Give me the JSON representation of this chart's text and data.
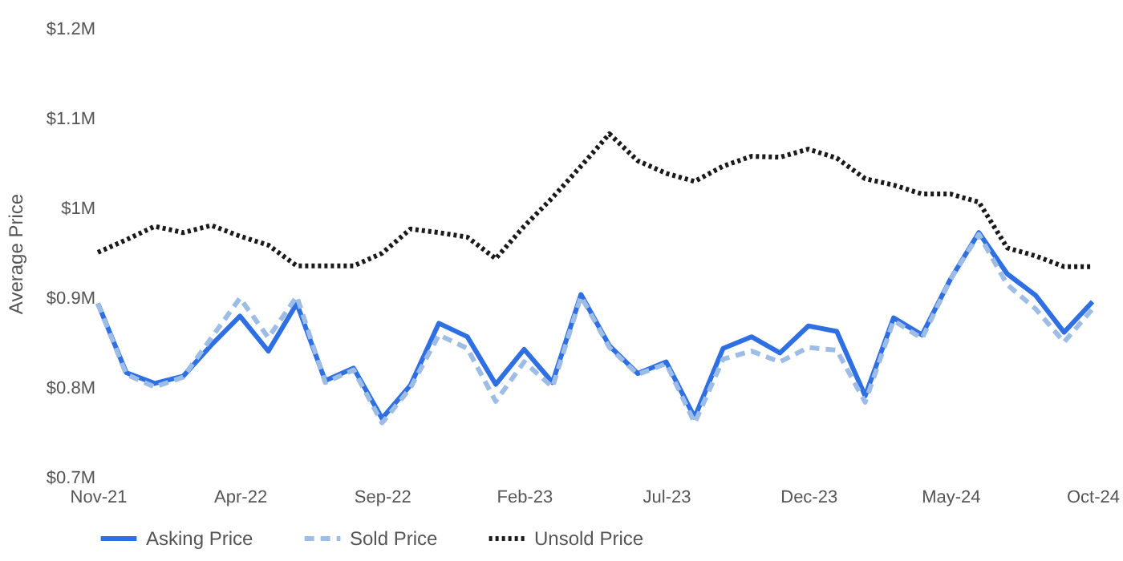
{
  "chart_data": {
    "type": "line",
    "ylabel": "Average Price",
    "categories": [
      "Nov-21",
      null,
      null,
      null,
      null,
      "Apr-22",
      null,
      null,
      null,
      null,
      "Sep-22",
      null,
      null,
      null,
      null,
      "Feb-23",
      null,
      null,
      null,
      null,
      "Jul-23",
      null,
      null,
      null,
      null,
      "Dec-23",
      null,
      null,
      null,
      null,
      "May-24",
      null,
      null,
      null,
      null,
      "Oct-24"
    ],
    "ylim": [
      0.7,
      1.2
    ],
    "yticks": [
      {
        "value": 0.7,
        "label": "$0.7M"
      },
      {
        "value": 0.8,
        "label": "$0.8M"
      },
      {
        "value": 0.9,
        "label": "$0.9M"
      },
      {
        "value": 1.0,
        "label": "$1M"
      },
      {
        "value": 1.1,
        "label": "$1.1M"
      },
      {
        "value": 1.2,
        "label": "$1.2M"
      }
    ],
    "grid": false,
    "legend": "bottom",
    "series": [
      {
        "name": "Asking Price",
        "color": "#2f6fe4",
        "line_style": "solid",
        "values": [
          0.894,
          0.817,
          0.805,
          0.813,
          0.848,
          0.88,
          0.841,
          0.894,
          0.808,
          0.822,
          0.766,
          0.803,
          0.872,
          0.857,
          0.804,
          0.843,
          0.806,
          0.904,
          0.847,
          0.816,
          0.829,
          0.767,
          0.844,
          0.857,
          0.839,
          0.869,
          0.863,
          0.791,
          0.878,
          0.859,
          0.921,
          0.973,
          0.927,
          0.903,
          0.862,
          0.896
        ]
      },
      {
        "name": "Sold Price",
        "color": "#9dbde6",
        "line_style": "dashed",
        "values": [
          0.894,
          0.815,
          0.801,
          0.812,
          0.856,
          0.9,
          0.856,
          0.902,
          0.806,
          0.82,
          0.761,
          0.8,
          0.859,
          0.844,
          0.785,
          0.829,
          0.801,
          0.902,
          0.845,
          0.815,
          0.827,
          0.761,
          0.832,
          0.841,
          0.829,
          0.845,
          0.842,
          0.784,
          0.875,
          0.855,
          0.921,
          0.971,
          0.915,
          0.888,
          0.851,
          0.888
        ]
      },
      {
        "name": "Unsold Price",
        "color": "#1a1a1a",
        "line_style": "dotted",
        "values": [
          0.951,
          0.965,
          0.98,
          0.973,
          0.981,
          0.969,
          0.959,
          0.936,
          0.936,
          0.936,
          0.95,
          0.977,
          0.973,
          0.968,
          0.944,
          0.98,
          1.012,
          1.047,
          1.083,
          1.053,
          1.039,
          1.03,
          1.047,
          1.058,
          1.057,
          1.066,
          1.056,
          1.033,
          1.026,
          1.016,
          1.016,
          1.007,
          0.956,
          0.947,
          0.935,
          0.935
        ]
      }
    ]
  }
}
